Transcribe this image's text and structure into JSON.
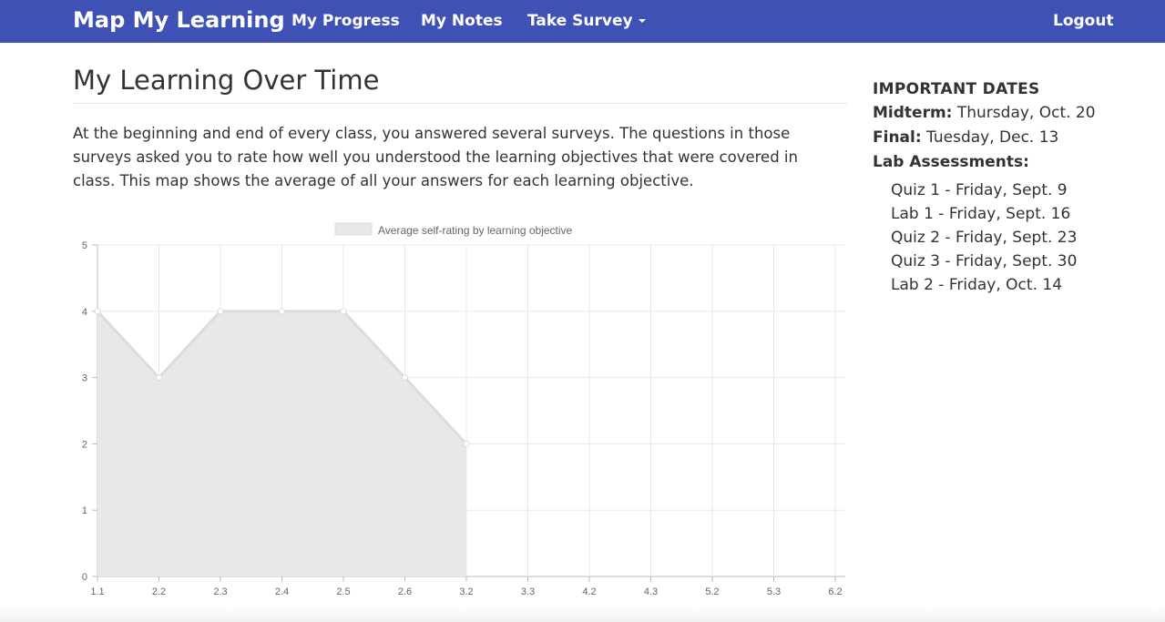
{
  "navbar": {
    "brand": "Map My Learning",
    "items": [
      {
        "label": "My Progress"
      },
      {
        "label": "My Notes"
      },
      {
        "label": "Take Survey"
      }
    ],
    "logout": "Logout",
    "color": "#3f51b5"
  },
  "main": {
    "title": "My Learning Over Time",
    "intro": "At the beginning and end of every class, you answered several surveys. The questions in those surveys asked you to rate how well you understood the learning objectives that were covered in class. This map shows the average of all your answers for each learning objective."
  },
  "chart_data": {
    "type": "area",
    "categories": [
      "1.1",
      "2.2",
      "2.3",
      "2.4",
      "2.5",
      "2.6",
      "3.2",
      "3.3",
      "4.2",
      "4.3",
      "5.2",
      "5.3",
      "6.2"
    ],
    "series": [
      {
        "name": "Average self-rating by learning objective",
        "values": [
          4,
          3,
          4,
          4,
          4,
          3,
          2,
          null,
          null,
          null,
          null,
          null,
          null
        ]
      }
    ],
    "yticks": [
      "0",
      "1",
      "2",
      "3",
      "4",
      "5"
    ],
    "ylim": [
      0,
      5
    ],
    "grid": true,
    "legend": "top",
    "fill_color": "#e8e8e8",
    "line_color": "#dcdcdc"
  },
  "sidebar": {
    "heading": "IMPORTANT DATES",
    "midterm_label": "Midterm:",
    "midterm_value": "Thursday, Oct. 20",
    "final_label": "Final:",
    "final_value": "Tuesday, Dec. 13",
    "lab_label": "Lab Assessments:",
    "assessments": [
      "Quiz 1 - Friday, Sept. 9",
      "Lab 1 - Friday, Sept. 16",
      "Quiz 2 - Friday, Sept. 23",
      "Quiz 3 - Friday, Sept. 30",
      "Lab 2 - Friday, Oct. 14"
    ]
  }
}
